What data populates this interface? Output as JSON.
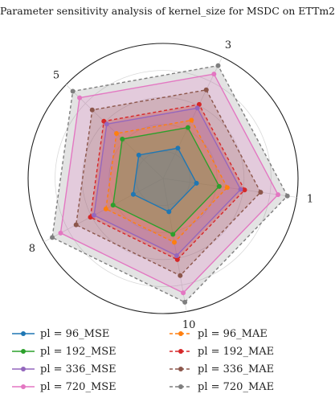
{
  "chart_data": {
    "type": "radar",
    "title": "Parameter sensitivity analysis of kernel_size for MSDC on ETTm2",
    "axes": [
      "1",
      "3",
      "5",
      "8",
      "10"
    ],
    "rmax": 1.0,
    "grid": true,
    "grid_levels": [
      0.2,
      0.4,
      0.6,
      0.8,
      1.0
    ],
    "legend_position": "bottom",
    "series": [
      {
        "name": "pl = 96_MSE",
        "color": "#1f77b4",
        "dash": false,
        "values": [
          0.25,
          0.25,
          0.25,
          0.25,
          0.25
        ]
      },
      {
        "name": "pl = 192_MSE",
        "color": "#2ca02c",
        "dash": false,
        "values": [
          0.42,
          0.42,
          0.42,
          0.42,
          0.42
        ]
      },
      {
        "name": "pl = 336_MSE",
        "color": "#9467bd",
        "dash": false,
        "values": [
          0.58,
          0.58,
          0.58,
          0.58,
          0.58
        ]
      },
      {
        "name": "pl = 720_MSE",
        "color": "#e377c2",
        "dash": false,
        "values": [
          0.86,
          0.86,
          0.86,
          0.86,
          0.86
        ]
      },
      {
        "name": "pl = 96_MAE",
        "color": "#ff7f0e",
        "dash": true,
        "values": [
          0.48,
          0.48,
          0.48,
          0.48,
          0.48
        ]
      },
      {
        "name": "pl = 192_MAE",
        "color": "#d62728",
        "dash": true,
        "values": [
          0.61,
          0.61,
          0.61,
          0.61,
          0.61
        ]
      },
      {
        "name": "pl = 336_MAE",
        "color": "#8c564b",
        "dash": true,
        "values": [
          0.73,
          0.73,
          0.73,
          0.73,
          0.73
        ]
      },
      {
        "name": "pl = 720_MAE",
        "color": "#7f7f7f",
        "dash": true,
        "values": [
          0.93,
          0.93,
          0.93,
          0.93,
          0.93
        ]
      }
    ]
  }
}
